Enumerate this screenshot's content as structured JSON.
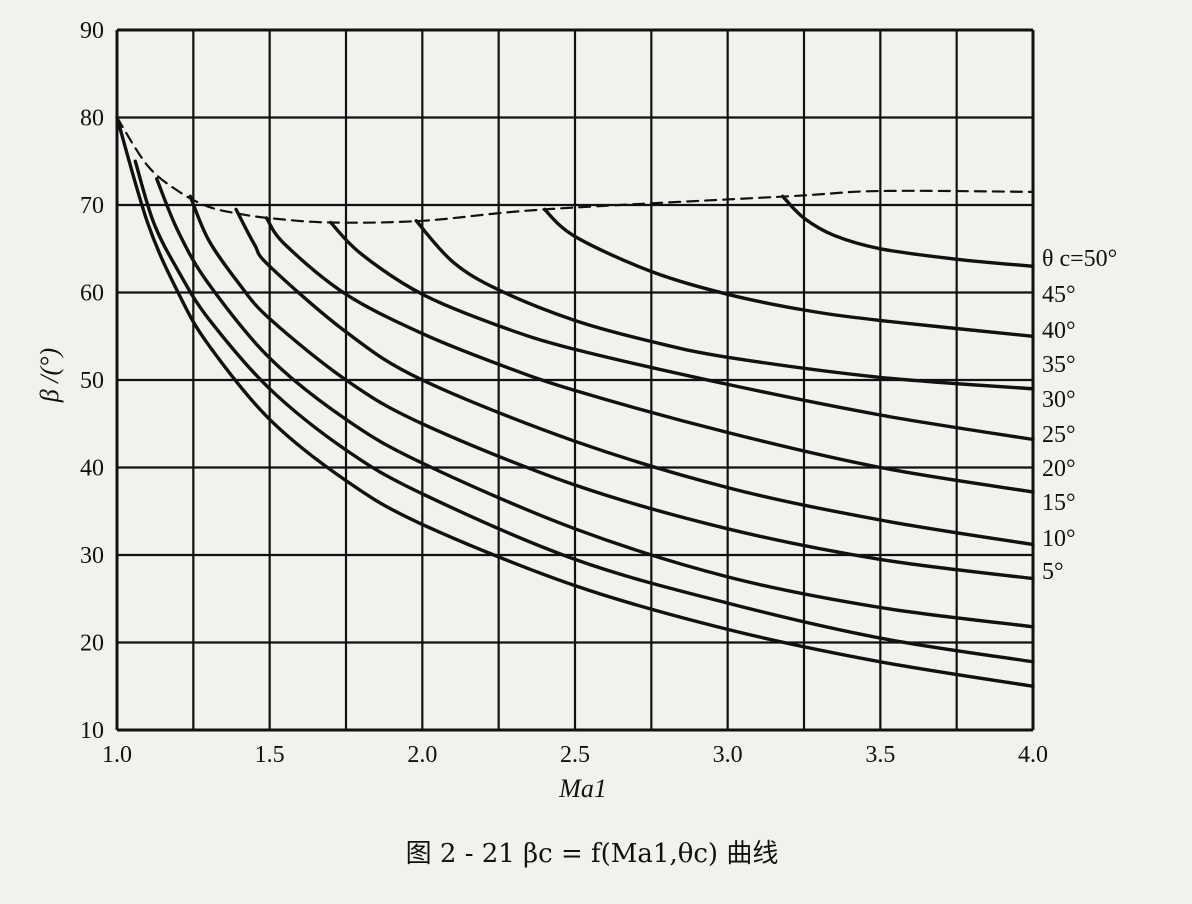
{
  "caption": "图 2 - 21   βc = f(Ma1,θc) 曲线",
  "chart_data": {
    "type": "line",
    "xlabel": "Ma1",
    "ylabel": "β /(°)",
    "xlim": [
      1.0,
      4.0
    ],
    "ylim": [
      10,
      90
    ],
    "x_ticks": [
      "1.0",
      "1.5",
      "2.0",
      "2.5",
      "3.0",
      "3.5",
      "4.0"
    ],
    "y_ticks": [
      "10",
      "20",
      "30",
      "40",
      "50",
      "60",
      "70",
      "80",
      "90"
    ],
    "grid": true,
    "series": [
      {
        "name": "5°",
        "x": [
          1.0,
          1.1,
          1.2,
          1.3,
          1.5,
          1.75,
          2.0,
          2.5,
          3.0,
          3.5,
          4.0
        ],
        "y": [
          80,
          68,
          60,
          54,
          45.5,
          38.5,
          33.5,
          26.5,
          21.5,
          17.8,
          15
        ]
      },
      {
        "name": "10°",
        "x": [
          1.06,
          1.12,
          1.2,
          1.3,
          1.5,
          1.75,
          2.0,
          2.5,
          3.0,
          3.5,
          4.0
        ],
        "y": [
          75,
          68,
          62.5,
          57,
          49,
          42,
          37,
          29.5,
          24.5,
          20.5,
          17.8
        ]
      },
      {
        "name": "15°",
        "x": [
          1.13,
          1.2,
          1.3,
          1.5,
          1.75,
          2.0,
          2.5,
          3.0,
          3.5,
          4.0
        ],
        "y": [
          73,
          67,
          61,
          52.5,
          45.5,
          40.5,
          33,
          27.5,
          24,
          21.8
        ]
      },
      {
        "name": "20°",
        "x": [
          1.24,
          1.3,
          1.4,
          1.5,
          1.75,
          2.0,
          2.5,
          3.0,
          3.5,
          4.0
        ],
        "y": [
          71,
          66,
          61,
          57,
          50,
          45,
          38,
          33,
          29.5,
          27.3
        ]
      },
      {
        "name": "25°",
        "x": [
          1.39,
          1.45,
          1.5,
          1.75,
          2.0,
          2.5,
          3.0,
          3.5,
          4.0
        ],
        "y": [
          69.5,
          65.5,
          63,
          55.5,
          50,
          43,
          37.7,
          34,
          31.2
        ]
      },
      {
        "name": "30°",
        "x": [
          1.49,
          1.55,
          1.75,
          2.0,
          2.25,
          2.5,
          3.0,
          3.5,
          4.0
        ],
        "y": [
          68.5,
          65.5,
          59.8,
          55.3,
          51.8,
          48.8,
          44,
          40,
          37.2
        ]
      },
      {
        "name": "35°",
        "x": [
          1.7,
          1.8,
          2.0,
          2.25,
          2.5,
          3.0,
          3.5,
          4.0
        ],
        "y": [
          68,
          64.4,
          59.8,
          56.2,
          53.5,
          49.5,
          46,
          43.2
        ]
      },
      {
        "name": "40°",
        "x": [
          1.98,
          2.1,
          2.25,
          2.5,
          2.75,
          3.0,
          3.5,
          4.0
        ],
        "y": [
          68.2,
          63.5,
          60.3,
          56.8,
          54.4,
          52.6,
          50.3,
          49
        ]
      },
      {
        "name": "45°",
        "x": [
          2.4,
          2.5,
          2.75,
          3.0,
          3.25,
          3.5,
          4.0
        ],
        "y": [
          69.5,
          66.4,
          62.4,
          59.8,
          58,
          56.8,
          55
        ]
      },
      {
        "name": "θ c=50°",
        "x": [
          3.18,
          3.25,
          3.35,
          3.5,
          3.75,
          4.0
        ],
        "y": [
          71,
          68.5,
          66.5,
          65,
          63.8,
          63
        ]
      },
      {
        "name": "",
        "style": "dashed",
        "x": [
          1.0,
          1.1,
          1.2,
          1.3,
          1.4,
          1.5,
          1.7,
          2.0,
          2.4,
          3.2,
          3.5,
          4.0
        ],
        "y": [
          80,
          74.5,
          71.6,
          69.8,
          69,
          68.5,
          68,
          68.2,
          69.5,
          71,
          71.6,
          71.5
        ]
      }
    ]
  }
}
